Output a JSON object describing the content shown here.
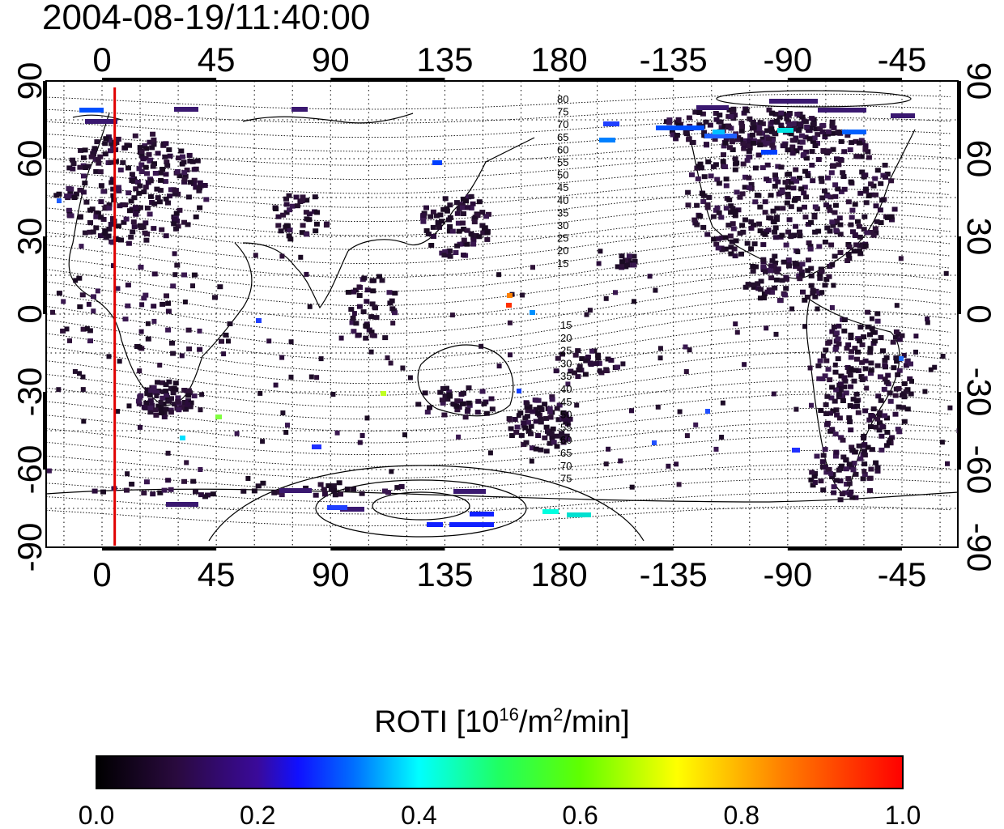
{
  "title": "2004-08-19/11:40:00",
  "map": {
    "x_ticks": [
      "0",
      "45",
      "90",
      "135",
      "180",
      "-135",
      "-90",
      "-45"
    ],
    "x_tick_lon": [
      0,
      45,
      90,
      135,
      180,
      225,
      270,
      315
    ],
    "lon_range": [
      -22,
      337
    ],
    "y_ticks": [
      "90",
      "60",
      "30",
      "0",
      "-30",
      "-60",
      "-90"
    ],
    "y_tick_lat": [
      90,
      60,
      30,
      0,
      -30,
      -60,
      -90
    ],
    "lat_range": [
      -90,
      90
    ],
    "grid": true,
    "terminator_lon": 5,
    "terminator_color": "#e00000",
    "contour_labels_north": [
      "80",
      "75",
      "70",
      "65",
      "60",
      "55",
      "50",
      "45",
      "40",
      "35",
      "30",
      "25",
      "20",
      "15"
    ],
    "contour_labels_south": [
      "15",
      "20",
      "25",
      "30",
      "35",
      "40",
      "45",
      "50",
      "55",
      "60",
      "65",
      "70",
      "75"
    ]
  },
  "colorbar": {
    "label_prefix": "ROTI  [10",
    "sup1": "16",
    "label_mid": "/m",
    "sup2": "2",
    "label_suffix": "/min]",
    "ticks": [
      "0.0",
      "0.2",
      "0.4",
      "0.6",
      "0.8",
      "1.0"
    ],
    "range": [
      0.0,
      1.0
    ],
    "colormap": "rainbow (black-purple-blue-cyan-green-yellow-red)"
  }
}
